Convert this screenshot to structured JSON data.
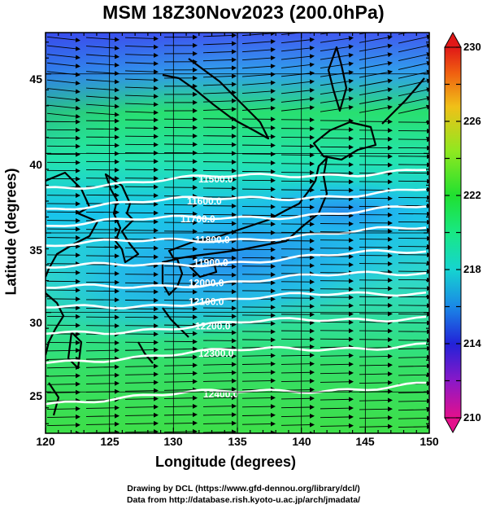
{
  "title": "MSM 18Z30Nov2023 (200.0hPa)",
  "x_axis": {
    "label": "Longitude (degrees)",
    "ticks": [
      "120",
      "125",
      "130",
      "135",
      "140",
      "145",
      "150"
    ],
    "range": [
      120,
      150
    ]
  },
  "y_axis": {
    "label": "Latitude  (degrees)",
    "ticks": [
      "25",
      "30",
      "35",
      "40",
      "45"
    ],
    "range": [
      22.4,
      47.6
    ]
  },
  "colorbar": {
    "ticks": [
      "230",
      "226",
      "222",
      "218",
      "214",
      "210"
    ],
    "range": [
      210,
      230
    ],
    "colors": [
      "#e4108c",
      "#8a18c8",
      "#2222d8",
      "#1a88e6",
      "#16d4d0",
      "#18e884",
      "#20e030",
      "#b8e820",
      "#f0c018",
      "#f06010",
      "#e01818"
    ]
  },
  "contours": {
    "color": "#ffffff",
    "labels": [
      "11500.0",
      "11600.0",
      "11700.0",
      "11800.0",
      "11900.0",
      "12000.0",
      "12100.0",
      "12200.0",
      "12300.0",
      "12400.0"
    ]
  },
  "credits": [
    "Drawing by DCL (https://www.gfd-dennou.org/library/dcl/)",
    "Data from http://database.rish.kyoto-u.ac.jp/arch/jmadata/"
  ]
}
